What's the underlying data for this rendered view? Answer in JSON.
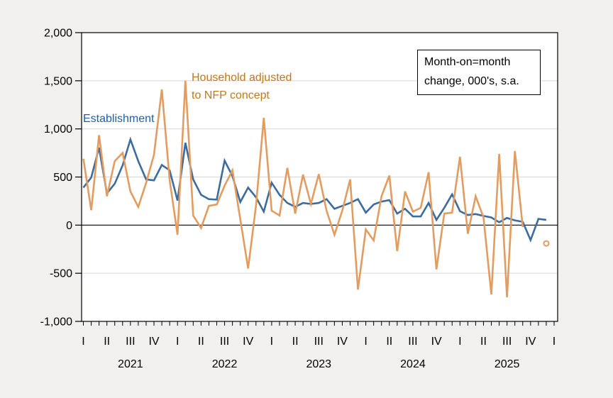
{
  "annotations": {
    "note_line1": "Month-on=month",
    "note_line2": "change, 000's, s.a."
  },
  "series_labels": {
    "establishment": "Establishment",
    "household_line1": "Household adjusted",
    "household_line2": "to NFP concept"
  },
  "colors": {
    "establishment_line": "#3c6b9e",
    "household_line": "#e39c60",
    "establishment_label": "#1e5fa8",
    "household_label": "#bf7917",
    "grid": "#d7d7d7",
    "axis": "#000000",
    "plot_background": "#ffffff",
    "outer_background": "#f1f0ee"
  },
  "chart_data": {
    "type": "line",
    "frequency": "monthly",
    "x_start": "2021-01",
    "x_end_axis": "2026-01",
    "ylim": [
      -1000,
      2000
    ],
    "grid": "horizontal-only",
    "zero_line": true,
    "y_ticks": [
      {
        "value": 2000,
        "label": "2,000"
      },
      {
        "value": 1500,
        "label": "1,500"
      },
      {
        "value": 1000,
        "label": "1,000"
      },
      {
        "value": 500,
        "label": "500"
      },
      {
        "value": 0,
        "label": "0"
      },
      {
        "value": -500,
        "label": "-500"
      },
      {
        "value": -1000,
        "label": "-1,000"
      }
    ],
    "quarter_label_cycle": [
      "I",
      "II",
      "III",
      "IV"
    ],
    "year_labels": [
      "2021",
      "2022",
      "2023",
      "2024",
      "2025"
    ],
    "series": [
      {
        "name": "Establishment",
        "color_key": "establishment_line",
        "values": [
          390,
          495,
          805,
          330,
          430,
          620,
          890,
          665,
          475,
          465,
          625,
          570,
          255,
          855,
          475,
          315,
          270,
          265,
          670,
          510,
          240,
          390,
          290,
          140,
          440,
          315,
          230,
          190,
          230,
          220,
          230,
          270,
          170,
          200,
          230,
          270,
          130,
          215,
          245,
          260,
          120,
          170,
          90,
          90,
          230,
          55,
          180,
          320,
          145,
          105,
          115,
          95,
          80,
          30,
          75,
          50,
          35,
          -155,
          65,
          55
        ]
      },
      {
        "name": "Household adjusted to NFP concept",
        "color_key": "household_line",
        "values": [
          690,
          155,
          935,
          300,
          665,
          750,
          350,
          190,
          440,
          730,
          1410,
          470,
          -100,
          1500,
          100,
          -30,
          200,
          215,
          410,
          570,
          60,
          -450,
          200,
          1115,
          150,
          100,
          595,
          120,
          525,
          220,
          530,
          150,
          -100,
          150,
          475,
          -670,
          -45,
          -160,
          300,
          515,
          -270,
          350,
          140,
          180,
          550,
          -460,
          120,
          130,
          710,
          -90,
          300,
          80,
          -720,
          740,
          -750,
          770,
          -20,
          null,
          null,
          -190
        ]
      }
    ],
    "isolated_point": {
      "series": "Household adjusted to NFP concept",
      "x_label": "2025-12",
      "value": -190,
      "marker": "open-circle"
    }
  }
}
